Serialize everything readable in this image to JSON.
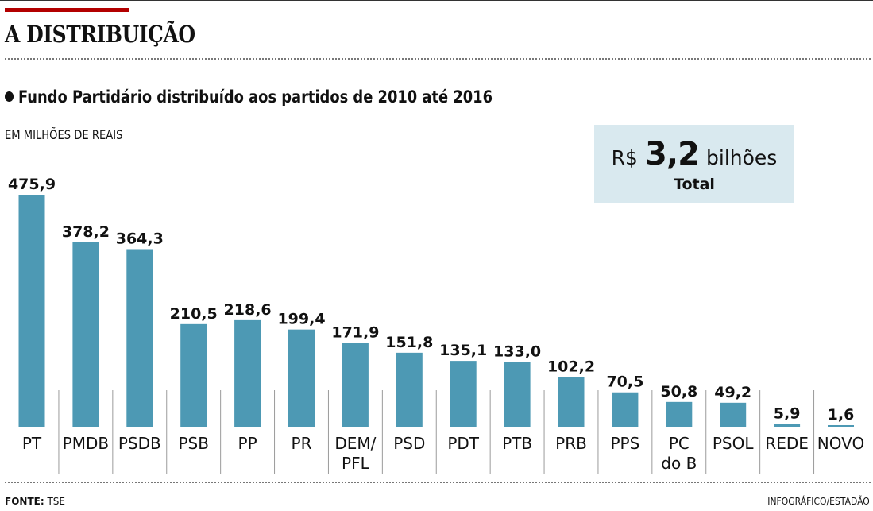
{
  "header": {
    "title": "A DISTRIBUIÇÃO",
    "subtitle": "Fundo Partidário distribuído aos partidos de 2010 até 2016",
    "unit_note": "EM MILHÕES DE REAIS"
  },
  "total_box": {
    "currency": "R$",
    "value": "3,2",
    "unit": "bilhões",
    "label": "Total"
  },
  "footer": {
    "source_label": "FONTE:",
    "source_value": "TSE",
    "credit": "INFOGRÁFICO/ESTADÃO"
  },
  "colors": {
    "bar": "#4d99b4",
    "accent_red": "#b30000",
    "total_box_bg": "#d9e9ef"
  },
  "chart_data": {
    "type": "bar",
    "title": "Fundo Partidário distribuído aos partidos de 2010 até 2016",
    "xlabel": "",
    "ylabel": "EM MILHÕES DE REAIS",
    "ylim": [
      0,
      475.9
    ],
    "grid": false,
    "legend": "none",
    "categories": [
      [
        "PT"
      ],
      [
        "PMDB"
      ],
      [
        "PSDB"
      ],
      [
        "PSB"
      ],
      [
        "PP"
      ],
      [
        "PR"
      ],
      [
        "DEM/",
        "PFL"
      ],
      [
        "PSD"
      ],
      [
        "PDT"
      ],
      [
        "PTB"
      ],
      [
        "PRB"
      ],
      [
        "PPS"
      ],
      [
        "PC",
        "do B"
      ],
      [
        "PSOL"
      ],
      [
        "REDE"
      ],
      [
        "NOVO"
      ]
    ],
    "values": [
      475.9,
      378.2,
      364.3,
      210.5,
      218.6,
      199.4,
      171.9,
      151.8,
      135.1,
      133.0,
      102.2,
      70.5,
      50.8,
      49.2,
      5.9,
      1.6
    ],
    "value_labels": [
      "475,9",
      "378,2",
      "364,3",
      "210,5",
      "218,6",
      "199,4",
      "171,9",
      "151,8",
      "135,1",
      "133,0",
      "102,2",
      "70,5",
      "50,8",
      "49,2",
      "5,9",
      "1,6"
    ]
  }
}
